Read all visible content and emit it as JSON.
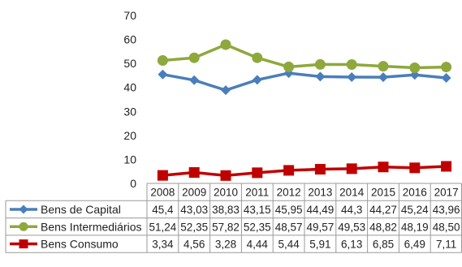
{
  "chart_data": {
    "type": "line",
    "title": "",
    "xlabel": "",
    "ylabel": "",
    "ylim": [
      0,
      70
    ],
    "yticks": [
      0,
      10,
      20,
      30,
      40,
      50,
      60,
      70
    ],
    "grid": false,
    "legend_placement": "data-table-left",
    "categories": [
      "2008",
      "2009",
      "2010",
      "2011",
      "2012",
      "2013",
      "2014",
      "2015",
      "2016",
      "2017"
    ],
    "series": [
      {
        "name": "Bens de Capital",
        "color": "#4a7ebb",
        "marker": "diamond",
        "values": [
          45.4,
          43.03,
          38.83,
          43.15,
          45.95,
          44.49,
          44.3,
          44.27,
          45.24,
          43.96
        ],
        "labels": [
          "45,4",
          "43,03",
          "38,83",
          "43,15",
          "45,95",
          "44,49",
          "44,3",
          "44,27",
          "45,24",
          "43,96"
        ]
      },
      {
        "name": "Bens Intermediários",
        "color": "#8ea83c",
        "marker": "circle",
        "values": [
          51.24,
          52.35,
          57.82,
          52.35,
          48.57,
          49.57,
          49.53,
          48.82,
          48.19,
          48.5
        ],
        "labels": [
          "51,24",
          "52,35",
          "57,82",
          "52,35",
          "48,57",
          "49,57",
          "49,53",
          "48,82",
          "48,19",
          "48,50"
        ]
      },
      {
        "name": "Bens Consumo",
        "color": "#c00000",
        "marker": "square",
        "values": [
          3.34,
          4.56,
          3.28,
          4.44,
          5.44,
          5.91,
          6.13,
          6.85,
          6.49,
          7.11
        ],
        "labels": [
          "3,34",
          "4,56",
          "3,28",
          "4,44",
          "5,44",
          "5,91",
          "6,13",
          "6,85",
          "6,49",
          "7,11"
        ]
      }
    ]
  }
}
